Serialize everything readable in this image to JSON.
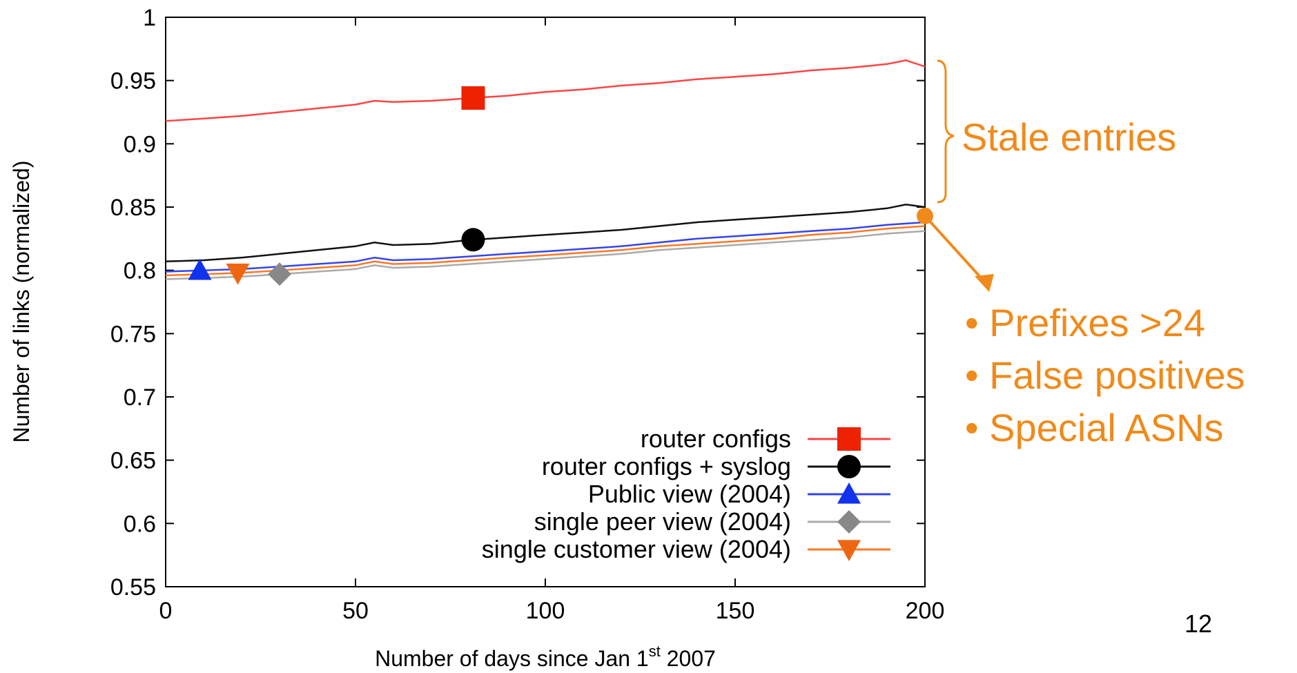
{
  "chart_data": {
    "type": "line",
    "xlabel": "Number of days since Jan 1",
    "xlabel_sup": "st",
    "xlabel_tail": " 2007",
    "ylabel": "Number of links (normalized)",
    "xlim": [
      0,
      200
    ],
    "ylim": [
      0.55,
      1
    ],
    "x_ticks": [
      0,
      50,
      100,
      150,
      200
    ],
    "x_tick_labels": [
      "0",
      "50",
      "100",
      "150",
      "200"
    ],
    "y_ticks": [
      0.55,
      0.6,
      0.65,
      0.7,
      0.75,
      0.8,
      0.85,
      0.9,
      0.95,
      1
    ],
    "y_tick_labels": [
      "0.55",
      "0.6",
      "0.65",
      "0.7",
      "0.75",
      "0.8",
      "0.85",
      "0.9",
      "0.95",
      "1"
    ],
    "grid": false,
    "legend_position": "bottom-right",
    "series": [
      {
        "name": "router configs",
        "color": "#ff4444",
        "marker": "square",
        "marker_color": "#ee2200",
        "marker_x": 81,
        "x": [
          0,
          10,
          20,
          30,
          40,
          50,
          55,
          60,
          70,
          80,
          90,
          100,
          110,
          120,
          130,
          140,
          150,
          160,
          170,
          180,
          190,
          195,
          200
        ],
        "y": [
          0.918,
          0.92,
          0.922,
          0.925,
          0.928,
          0.931,
          0.934,
          0.933,
          0.934,
          0.936,
          0.938,
          0.941,
          0.943,
          0.946,
          0.948,
          0.951,
          0.953,
          0.955,
          0.958,
          0.96,
          0.963,
          0.966,
          0.961
        ]
      },
      {
        "name": "router configs + syslog",
        "color": "#111111",
        "marker": "circle",
        "marker_color": "#000000",
        "marker_x": 81,
        "x": [
          0,
          10,
          20,
          30,
          40,
          50,
          55,
          60,
          70,
          80,
          90,
          100,
          110,
          120,
          130,
          140,
          150,
          160,
          170,
          180,
          190,
          195,
          200
        ],
        "y": [
          0.807,
          0.808,
          0.81,
          0.813,
          0.816,
          0.819,
          0.822,
          0.82,
          0.821,
          0.824,
          0.826,
          0.828,
          0.83,
          0.832,
          0.835,
          0.838,
          0.84,
          0.842,
          0.844,
          0.846,
          0.849,
          0.852,
          0.85
        ]
      },
      {
        "name": "Public view (2004)",
        "color": "#3344ee",
        "marker": "triangle-up",
        "marker_color": "#1133ee",
        "marker_x": 9,
        "x": [
          0,
          10,
          20,
          30,
          40,
          50,
          55,
          60,
          70,
          80,
          90,
          100,
          110,
          120,
          130,
          140,
          150,
          160,
          170,
          180,
          190,
          200
        ],
        "y": [
          0.799,
          0.8,
          0.801,
          0.803,
          0.805,
          0.807,
          0.81,
          0.808,
          0.809,
          0.811,
          0.813,
          0.815,
          0.817,
          0.819,
          0.822,
          0.825,
          0.827,
          0.829,
          0.831,
          0.833,
          0.836,
          0.838
        ]
      },
      {
        "name": "single peer view (2004)",
        "color": "#aaaaaa",
        "marker": "diamond",
        "marker_color": "#888888",
        "marker_x": 30,
        "x": [
          0,
          10,
          20,
          30,
          40,
          50,
          55,
          60,
          70,
          80,
          90,
          100,
          110,
          120,
          130,
          140,
          150,
          160,
          170,
          180,
          190,
          200
        ],
        "y": [
          0.793,
          0.794,
          0.795,
          0.797,
          0.799,
          0.801,
          0.804,
          0.802,
          0.803,
          0.805,
          0.807,
          0.809,
          0.811,
          0.813,
          0.816,
          0.818,
          0.82,
          0.822,
          0.824,
          0.826,
          0.829,
          0.831
        ]
      },
      {
        "name": "single customer view (2004)",
        "color": "#ff7722",
        "marker": "triangle-down",
        "marker_color": "#ee6611",
        "marker_x": 19,
        "x": [
          0,
          10,
          20,
          30,
          40,
          50,
          55,
          60,
          70,
          80,
          90,
          100,
          110,
          120,
          130,
          140,
          150,
          160,
          170,
          180,
          190,
          200
        ],
        "y": [
          0.796,
          0.797,
          0.798,
          0.8,
          0.802,
          0.804,
          0.807,
          0.805,
          0.806,
          0.808,
          0.81,
          0.812,
          0.814,
          0.816,
          0.819,
          0.821,
          0.823,
          0.825,
          0.828,
          0.83,
          0.833,
          0.835
        ]
      }
    ]
  },
  "annotations": {
    "stale_label": "Stale entries",
    "bullets": [
      "Prefixes >24",
      "False positives",
      "Special ASNs"
    ],
    "bullet_char": "•",
    "color": "#f08a1a",
    "point_x": 200,
    "point_y": 0.843
  },
  "page_number": "12"
}
